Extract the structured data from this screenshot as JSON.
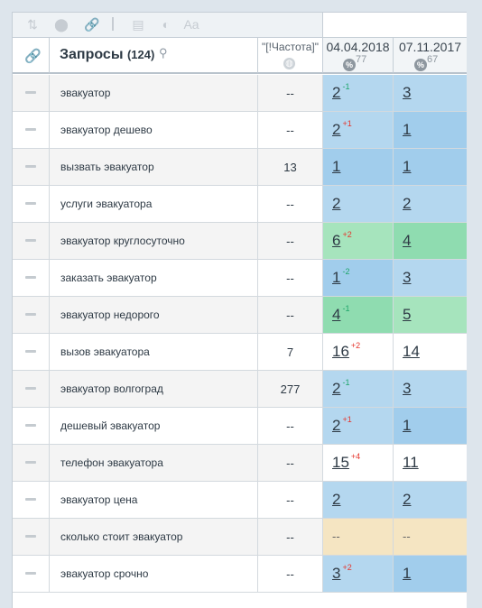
{
  "toolbar": {
    "icons": [
      "sort-icon",
      "toggle-icon",
      "link-icon",
      "table-icon",
      "contrast-icon",
      "text-icon"
    ]
  },
  "header": {
    "queries_label": "Запросы",
    "queries_count": "(124)",
    "frequency_label": "\"[!Частота]\"",
    "date1": "04.04.2018",
    "date1_pct": "77",
    "date2": "07.11.2017",
    "date2_pct": "67",
    "pct_symbol": "%"
  },
  "rows": [
    {
      "query": "эвакуатор",
      "freq": "--",
      "p1": "2",
      "d1": "-1",
      "p2": "3",
      "bg1": "bg-blue",
      "bg2": "bg-blue"
    },
    {
      "query": "эвакуатор дешево",
      "freq": "--",
      "p1": "2",
      "d1": "+1",
      "p2": "1",
      "bg1": "bg-blue",
      "bg2": "bg-blue2"
    },
    {
      "query": "вызвать эвакуатор",
      "freq": "13",
      "p1": "1",
      "d1": "",
      "p2": "1",
      "bg1": "bg-blue2",
      "bg2": "bg-blue2"
    },
    {
      "query": "услуги эвакуатора",
      "freq": "--",
      "p1": "2",
      "d1": "",
      "p2": "2",
      "bg1": "bg-blue",
      "bg2": "bg-blue"
    },
    {
      "query": "эвакуатор круглосуточно",
      "freq": "--",
      "p1": "6",
      "d1": "+2",
      "p2": "4",
      "bg1": "bg-green",
      "bg2": "bg-green2"
    },
    {
      "query": "заказать эвакуатор",
      "freq": "--",
      "p1": "1",
      "d1": "-2",
      "p2": "3",
      "bg1": "bg-blue2",
      "bg2": "bg-blue"
    },
    {
      "query": "эвакуатор недорого",
      "freq": "--",
      "p1": "4",
      "d1": "-1",
      "p2": "5",
      "bg1": "bg-green2",
      "bg2": "bg-green"
    },
    {
      "query": "вызов эвакуатора",
      "freq": "7",
      "p1": "16",
      "d1": "+2",
      "p2": "14",
      "bg1": "bg-white",
      "bg2": "bg-white"
    },
    {
      "query": "эвакуатор волгоград",
      "freq": "277",
      "p1": "2",
      "d1": "-1",
      "p2": "3",
      "bg1": "bg-blue",
      "bg2": "bg-blue"
    },
    {
      "query": "дешевый эвакуатор",
      "freq": "--",
      "p1": "2",
      "d1": "+1",
      "p2": "1",
      "bg1": "bg-blue",
      "bg2": "bg-blue2"
    },
    {
      "query": "телефон эвакуатора",
      "freq": "--",
      "p1": "15",
      "d1": "+4",
      "p2": "11",
      "bg1": "bg-white",
      "bg2": "bg-white"
    },
    {
      "query": "эвакуатор цена",
      "freq": "--",
      "p1": "2",
      "d1": "",
      "p2": "2",
      "bg1": "bg-blue",
      "bg2": "bg-blue"
    },
    {
      "query": "сколько стоит эвакуатор",
      "freq": "--",
      "p1": "--",
      "d1": "",
      "p2": "--",
      "bg1": "bg-yellow",
      "bg2": "bg-yellow"
    },
    {
      "query": "эвакуатор срочно",
      "freq": "--",
      "p1": "3",
      "d1": "+2",
      "p2": "1",
      "bg1": "bg-blue",
      "bg2": "bg-blue2"
    }
  ]
}
